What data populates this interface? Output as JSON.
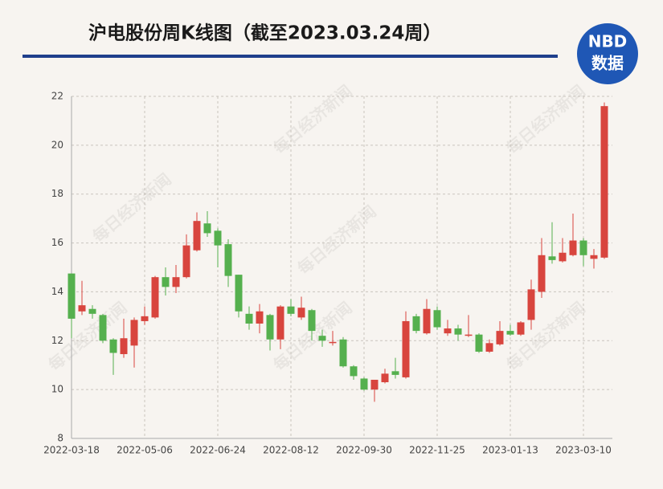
{
  "chart_data": {
    "type": "candlestick",
    "title": "沪电股份周K线图（截至2023.03.24周）",
    "logo": {
      "top": "NBD",
      "bottom": "数据"
    },
    "watermark": "每日经济新闻",
    "categories": [
      "2022-03-18",
      null,
      null,
      null,
      null,
      null,
      null,
      "2022-05-06",
      null,
      null,
      null,
      null,
      null,
      null,
      "2022-06-24",
      null,
      null,
      null,
      null,
      null,
      null,
      "2022-08-12",
      null,
      null,
      null,
      null,
      null,
      null,
      "2022-09-30",
      null,
      null,
      null,
      null,
      null,
      null,
      "2022-11-25",
      null,
      null,
      null,
      null,
      null,
      null,
      "2023-01-13",
      null,
      null,
      null,
      null,
      null,
      null,
      "2023-03-10",
      null,
      null
    ],
    "open": [
      14.75,
      13.2,
      13.3,
      13.05,
      12.05,
      11.45,
      11.8,
      12.8,
      12.95,
      14.6,
      14.2,
      14.6,
      15.7,
      16.8,
      16.5,
      15.95,
      14.7,
      13.1,
      12.7,
      13.05,
      12.05,
      13.4,
      12.95,
      13.25,
      12.2,
      11.9,
      12.05,
      10.95,
      10.45,
      10.0,
      10.3,
      10.75,
      10.5,
      13.0,
      12.3,
      13.25,
      12.3,
      12.5,
      12.2,
      12.25,
      11.55,
      11.85,
      12.4,
      12.25,
      12.85,
      14.0,
      15.45,
      15.25,
      15.5,
      16.1,
      15.35,
      15.4
    ],
    "high": [
      14.75,
      14.45,
      13.45,
      13.1,
      12.1,
      12.9,
      12.95,
      13.4,
      14.65,
      15.0,
      15.1,
      16.35,
      17.25,
      17.3,
      16.6,
      16.15,
      14.7,
      13.4,
      13.5,
      13.1,
      13.45,
      13.7,
      13.8,
      13.3,
      12.45,
      12.4,
      12.15,
      11.0,
      10.5,
      10.4,
      10.85,
      11.3,
      13.2,
      13.1,
      13.7,
      13.4,
      12.85,
      12.65,
      13.05,
      12.3,
      12.05,
      12.8,
      12.65,
      12.8,
      14.5,
      16.2,
      16.85,
      16.2,
      17.2,
      16.2,
      15.75,
      21.75
    ],
    "low": [
      12.1,
      13.05,
      12.9,
      11.9,
      10.6,
      11.3,
      10.9,
      12.65,
      12.9,
      13.85,
      13.95,
      14.55,
      15.65,
      16.25,
      15.0,
      14.2,
      12.95,
      12.45,
      12.3,
      11.6,
      11.65,
      13.0,
      12.85,
      12.0,
      11.75,
      11.8,
      10.9,
      10.4,
      9.95,
      9.5,
      10.25,
      10.45,
      10.45,
      12.3,
      12.25,
      12.45,
      12.2,
      12.0,
      12.15,
      11.5,
      11.5,
      11.8,
      12.2,
      12.2,
      12.45,
      13.75,
      15.15,
      15.2,
      15.45,
      15.05,
      14.95,
      15.35
    ],
    "close": [
      12.9,
      13.45,
      13.1,
      12.0,
      11.5,
      12.1,
      12.85,
      13.0,
      14.6,
      14.2,
      14.6,
      15.9,
      16.9,
      16.4,
      15.9,
      14.65,
      13.2,
      12.7,
      13.2,
      12.05,
      13.4,
      13.1,
      13.35,
      12.4,
      12.0,
      11.95,
      10.95,
      10.55,
      10.0,
      10.4,
      10.65,
      10.6,
      12.8,
      12.4,
      13.3,
      12.55,
      12.5,
      12.25,
      12.25,
      11.55,
      11.9,
      12.4,
      12.25,
      12.75,
      14.1,
      15.5,
      15.3,
      15.6,
      16.1,
      15.5,
      15.5,
      21.6
    ],
    "up_color": "#d8453e",
    "down_color": "#55b04e",
    "ylim": [
      8,
      22
    ],
    "yticks": [
      8,
      10,
      12,
      14,
      16,
      18,
      20,
      22
    ],
    "grid": true
  }
}
